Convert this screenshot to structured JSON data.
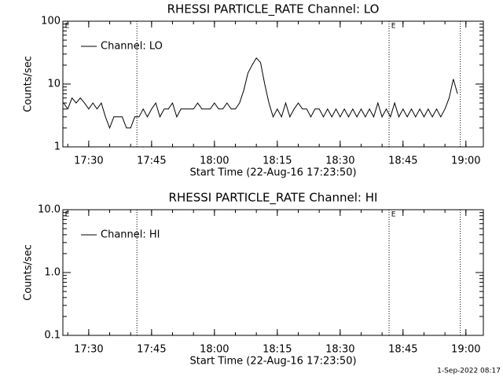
{
  "chart_data": [
    {
      "type": "line",
      "title": "RHESSI PARTICLE_RATE Channel: LO",
      "xlabel": "Start Time (22-Aug-16 17:23:50)",
      "ylabel": "Counts/sec",
      "log_y": true,
      "xlim": [
        "17:23:50",
        "19:04:10"
      ],
      "xticks": [
        "17:30",
        "17:45",
        "18:00",
        "18:15",
        "18:30",
        "18:45",
        "19:00"
      ],
      "ylim": [
        1,
        100
      ],
      "yticks": [
        1,
        10,
        100
      ],
      "vlines": [
        "17:41:30",
        "18:41:40",
        "18:58:40"
      ],
      "annotations": [
        {
          "text": "E",
          "x": "17:24:20"
        },
        {
          "text": "E",
          "x": "18:42:10"
        }
      ],
      "legend": "upper left",
      "x": [
        "17:24",
        "17:25",
        "17:26",
        "17:27",
        "17:28",
        "17:29",
        "17:30",
        "17:31",
        "17:32",
        "17:33",
        "17:34",
        "17:35",
        "17:36",
        "17:37",
        "17:38",
        "17:39",
        "17:40",
        "17:41",
        "17:42",
        "17:43",
        "17:44",
        "17:45",
        "17:46",
        "17:47",
        "17:48",
        "17:49",
        "17:50",
        "17:51",
        "17:52",
        "17:53",
        "17:54",
        "17:55",
        "17:56",
        "17:57",
        "17:58",
        "17:59",
        "18:00",
        "18:01",
        "18:02",
        "18:03",
        "18:04",
        "18:05",
        "18:06",
        "18:07",
        "18:08",
        "18:09",
        "18:10",
        "18:11",
        "18:12",
        "18:13",
        "18:14",
        "18:15",
        "18:16",
        "18:17",
        "18:18",
        "18:19",
        "18:20",
        "18:21",
        "18:22",
        "18:23",
        "18:24",
        "18:25",
        "18:26",
        "18:27",
        "18:28",
        "18:29",
        "18:30",
        "18:31",
        "18:32",
        "18:33",
        "18:34",
        "18:35",
        "18:36",
        "18:37",
        "18:38",
        "18:39",
        "18:40",
        "18:41",
        "18:42",
        "18:43",
        "18:44",
        "18:45",
        "18:46",
        "18:47",
        "18:48",
        "18:49",
        "18:50",
        "18:51",
        "18:52",
        "18:53",
        "18:54",
        "18:55",
        "18:56",
        "18:57",
        "18:58"
      ],
      "series": [
        {
          "name": "Channel: LO",
          "color": "#000000",
          "values": [
            5,
            4,
            6,
            5,
            6,
            5,
            4,
            5,
            4,
            5,
            3,
            2,
            3,
            3,
            3,
            2,
            2,
            3,
            3,
            4,
            3,
            4,
            5,
            3,
            4,
            4,
            5,
            3,
            4,
            4,
            4,
            4,
            5,
            4,
            4,
            4,
            5,
            4,
            4,
            5,
            4,
            4,
            5,
            8,
            15,
            20,
            26,
            22,
            10,
            5,
            3,
            4,
            3,
            5,
            3,
            4,
            5,
            4,
            4,
            3,
            4,
            4,
            3,
            4,
            3,
            4,
            3,
            4,
            3,
            4,
            3,
            4,
            3,
            4,
            3,
            5,
            3,
            4,
            3,
            5,
            3,
            4,
            3,
            4,
            3,
            4,
            3,
            4,
            3,
            4,
            3,
            4,
            6,
            12,
            7
          ]
        }
      ]
    },
    {
      "type": "line",
      "title": "RHESSI PARTICLE_RATE Channel: HI",
      "xlabel": "Start Time (22-Aug-16 17:23:50)",
      "ylabel": "Counts/sec",
      "log_y": true,
      "xlim": [
        "17:23:50",
        "19:04:10"
      ],
      "xticks": [
        "17:30",
        "17:45",
        "18:00",
        "18:15",
        "18:30",
        "18:45",
        "19:00"
      ],
      "ylim": [
        0.1,
        10
      ],
      "yticks": [
        0.1,
        {
          "value": 1,
          "label": "1.0"
        },
        {
          "value": 10,
          "label": "10.0"
        }
      ],
      "vlines": [
        "17:41:30",
        "18:41:40",
        "18:58:40"
      ],
      "annotations": [
        {
          "text": "E",
          "x": "17:24:20"
        },
        {
          "text": "E",
          "x": "18:42:10"
        }
      ],
      "legend": "upper left",
      "x": [],
      "series": [
        {
          "name": "Channel: HI",
          "color": "#000000",
          "values": []
        }
      ]
    }
  ],
  "footer": "1-Sep-2022 08:17"
}
